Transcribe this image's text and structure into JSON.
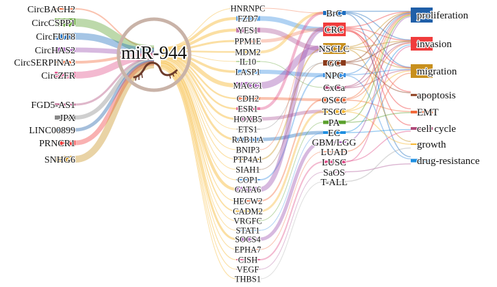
{
  "hub": {
    "label": "miR-944",
    "color": "#f7b733",
    "ring_color": "#c9b3a8",
    "icon": "rna-strand-icon"
  },
  "columns": {
    "regulators": [
      {
        "name": "CircBACH2",
        "color": "#f26a3a",
        "w": 2
      },
      {
        "name": "CircCSPP1",
        "color": "#5aa02c",
        "w": 12
      },
      {
        "name": "CircFUT8",
        "color": "#1f6fbf",
        "w": 10
      },
      {
        "name": "CircHAS2",
        "color": "#9b4fb0",
        "w": 7
      },
      {
        "name": "CircSERPINA3",
        "color": "#f26a3a",
        "w": 4
      },
      {
        "name": "CircZFR",
        "color": "#e0508a",
        "w": 10
      },
      {
        "name": "FGD5-AS1",
        "color": "#b04a7a",
        "w": 3
      },
      {
        "name": "JPX",
        "color": "#888888",
        "w": 6
      },
      {
        "name": "LINC00899",
        "color": "#1f5fa8",
        "w": 5
      },
      {
        "name": "PRNCR1",
        "color": "#f03c3c",
        "w": 7
      },
      {
        "name": "SNHG6",
        "color": "#c8901e",
        "w": 10
      }
    ],
    "targets": [
      {
        "name": "HNRNPC",
        "color": "#f26a3a",
        "w": 1,
        "cancer": "BrC"
      },
      {
        "name": "FZD7",
        "color": "#3a8fe0",
        "w": 7,
        "cancer": "CRC"
      },
      {
        "name": "YES1",
        "color": "#b05a9a",
        "w": 7,
        "cancer": "NSCLC"
      },
      {
        "name": "PPM1E",
        "color": "#f28a6a",
        "w": 5,
        "cancer": "CRC"
      },
      {
        "name": "MDM2",
        "color": "#f7b733",
        "w": 4,
        "cancer": "BrC"
      },
      {
        "name": "IL10",
        "color": "#5aa02c",
        "w": 1,
        "cancer": "CxCa"
      },
      {
        "name": "LASP1",
        "color": "#3a8fe0",
        "w": 6,
        "cancer": "NPC"
      },
      {
        "name": "MACC1",
        "color": "#9b4fb0",
        "w": 10,
        "cancer": "NSCLC"
      },
      {
        "name": "CDH2",
        "color": "#f26a3a",
        "w": 4,
        "cancer": "OSCC"
      },
      {
        "name": "ESR1",
        "color": "#e0508a",
        "w": 4,
        "cancer": "BrC"
      },
      {
        "name": "HOXB5",
        "color": "#b05a9a",
        "w": 5,
        "cancer": "TSCC"
      },
      {
        "name": "ETS1",
        "color": "#888888",
        "w": 1,
        "cancer": "GC"
      },
      {
        "name": "RAB11A",
        "color": "#1f6fbf",
        "w": 5,
        "cancer": "EC"
      },
      {
        "name": "BNIP3",
        "color": "#f26a3a",
        "w": 1,
        "cancer": "CRC"
      },
      {
        "name": "PTP4A1",
        "color": "#c8901e",
        "w": 2,
        "cancer": "NSCLC"
      },
      {
        "name": "SIAH1",
        "color": "#8b5a3a",
        "w": 1,
        "cancer": "GC"
      },
      {
        "name": "COP1",
        "color": "#3a8fe0",
        "w": 2,
        "cancer": "NPC"
      },
      {
        "name": "GATA6",
        "color": "#9b4fb0",
        "w": 7,
        "cancer": "CRC"
      },
      {
        "name": "HECW2",
        "color": "#f26a3a",
        "w": 2,
        "cancer": "OSCC"
      },
      {
        "name": "CADM2",
        "color": "#f7b733",
        "w": 3,
        "cancer": "TSCC"
      },
      {
        "name": "VRGFC",
        "color": "#5aa02c",
        "w": 1,
        "cancer": "PA"
      },
      {
        "name": "STAT1",
        "color": "#3a8fe0",
        "w": 1,
        "cancer": "EC"
      },
      {
        "name": "SOCS4",
        "color": "#9b4fb0",
        "w": 5,
        "cancer": "GBM/LGG"
      },
      {
        "name": "EPHA7",
        "color": "#f26a3a",
        "w": 1,
        "cancer": "LUAD"
      },
      {
        "name": "CISH",
        "color": "#e0508a",
        "w": 2,
        "cancer": "LUSC"
      },
      {
        "name": "VEGF",
        "color": "#b05a9a",
        "w": 1,
        "cancer": "SaOS"
      },
      {
        "name": "THBS1",
        "color": "#aaaaaa",
        "w": 1,
        "cancer": "T-ALL"
      }
    ],
    "cancers": [
      {
        "name": "BrC",
        "color": "#1f6fbf",
        "w": 6,
        "functions": [
          "proliferation",
          "invasion",
          "migration",
          "drug-resistance"
        ]
      },
      {
        "name": "CRC",
        "color": "#f03c3c",
        "w": 20,
        "functions": [
          "proliferation",
          "invasion",
          "migration",
          "EMT",
          "cell cycle",
          "apoptosis"
        ]
      },
      {
        "name": "NSCLC",
        "color": "#c8901e",
        "w": 16,
        "functions": [
          "proliferation",
          "invasion",
          "migration",
          "growth"
        ]
      },
      {
        "name": "GC",
        "color": "#8b3a1a",
        "w": 8,
        "functions": [
          "proliferation",
          "invasion",
          "apoptosis"
        ]
      },
      {
        "name": "NPC",
        "color": "#3a8fe0",
        "w": 6,
        "functions": [
          "proliferation",
          "migration",
          "drug-resistance"
        ]
      },
      {
        "name": "CxCa",
        "color": "#b04a7a",
        "w": 4,
        "functions": [
          "proliferation",
          "invasion",
          "migration"
        ]
      },
      {
        "name": "OSCC",
        "color": "#f26a3a",
        "w": 5,
        "functions": [
          "proliferation",
          "invasion",
          "EMT"
        ]
      },
      {
        "name": "TSCC",
        "color": "#f7b733",
        "w": 5,
        "functions": [
          "proliferation",
          "migration",
          "growth"
        ]
      },
      {
        "name": "PA",
        "color": "#5aa02c",
        "w": 5,
        "functions": [
          "proliferation",
          "EMT"
        ]
      },
      {
        "name": "EC",
        "color": "#1f8fe0",
        "w": 4,
        "functions": [
          "invasion",
          "cell cycle"
        ]
      },
      {
        "name": "GBM/LGG",
        "color": "#9b4fb0",
        "w": 2,
        "functions": [
          "proliferation"
        ]
      },
      {
        "name": "LUAD",
        "color": "#f26a3a",
        "w": 1,
        "functions": [
          "migration"
        ]
      },
      {
        "name": "LUSC",
        "color": "#e0508a",
        "w": 4,
        "functions": [
          "cell cycle",
          "invasion"
        ]
      },
      {
        "name": "SaOS",
        "color": "#b05a9a",
        "w": 1,
        "functions": [
          "drug-resistance"
        ]
      },
      {
        "name": "T-ALL",
        "color": "#aaaaaa",
        "w": 1,
        "functions": [
          "growth"
        ]
      }
    ],
    "functions": [
      {
        "name": "proliferation",
        "color": "#1f5fa8",
        "w": 22
      },
      {
        "name": "invasion",
        "color": "#f03c3c",
        "w": 20
      },
      {
        "name": "migration",
        "color": "#c8901e",
        "w": 20
      },
      {
        "name": "apoptosis",
        "color": "#8b3a1a",
        "w": 3
      },
      {
        "name": "EMT",
        "color": "#f26a3a",
        "w": 4
      },
      {
        "name": "cell cycle",
        "color": "#b04a7a",
        "w": 4
      },
      {
        "name": "growth",
        "color": "#f7b733",
        "w": 2
      },
      {
        "name": "drug-resistance",
        "color": "#1f8fe0",
        "w": 5
      }
    ]
  }
}
